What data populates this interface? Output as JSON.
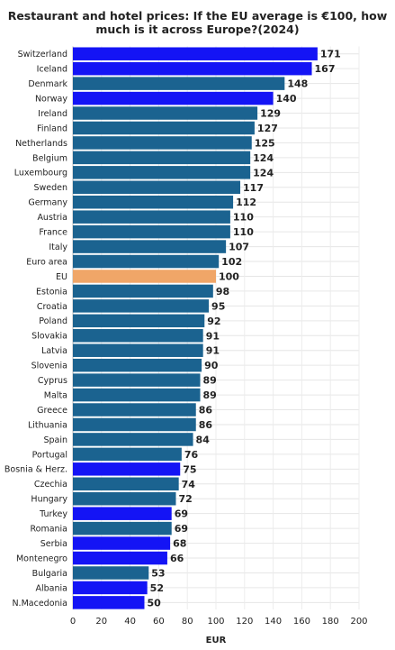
{
  "chart_data": {
    "type": "bar",
    "orientation": "horizontal",
    "title_line1": "Restaurant and hotel prices: If the EU average is €100, how",
    "title_line2": "much is it across Europe?(2024)",
    "xlabel": "EUR",
    "ylabel": "",
    "xlim": [
      0,
      200
    ],
    "xticks": [
      "0",
      "20",
      "40",
      "60",
      "80",
      "100",
      "120",
      "140",
      "160",
      "180",
      "200"
    ],
    "grid": true,
    "colors": {
      "eu_member": "#1b6390",
      "non_eu": "#1414f5",
      "eu_average": "#f0a668"
    },
    "bars": [
      {
        "label": "Switzerland",
        "value": 171,
        "group": "non_eu"
      },
      {
        "label": "Iceland",
        "value": 167,
        "group": "non_eu"
      },
      {
        "label": "Denmark",
        "value": 148,
        "group": "eu_member"
      },
      {
        "label": "Norway",
        "value": 140,
        "group": "non_eu"
      },
      {
        "label": "Ireland",
        "value": 129,
        "group": "eu_member"
      },
      {
        "label": "Finland",
        "value": 127,
        "group": "eu_member"
      },
      {
        "label": "Netherlands",
        "value": 125,
        "group": "eu_member"
      },
      {
        "label": "Belgium",
        "value": 124,
        "group": "eu_member"
      },
      {
        "label": "Luxembourg",
        "value": 124,
        "group": "eu_member"
      },
      {
        "label": "Sweden",
        "value": 117,
        "group": "eu_member"
      },
      {
        "label": "Germany",
        "value": 112,
        "group": "eu_member"
      },
      {
        "label": "Austria",
        "value": 110,
        "group": "eu_member"
      },
      {
        "label": "France",
        "value": 110,
        "group": "eu_member"
      },
      {
        "label": "Italy",
        "value": 107,
        "group": "eu_member"
      },
      {
        "label": "Euro area",
        "value": 102,
        "group": "eu_member"
      },
      {
        "label": "EU",
        "value": 100,
        "group": "eu_average"
      },
      {
        "label": "Estonia",
        "value": 98,
        "group": "eu_member"
      },
      {
        "label": "Croatia",
        "value": 95,
        "group": "eu_member"
      },
      {
        "label": "Poland",
        "value": 92,
        "group": "eu_member"
      },
      {
        "label": "Slovakia",
        "value": 91,
        "group": "eu_member"
      },
      {
        "label": "Latvia",
        "value": 91,
        "group": "eu_member"
      },
      {
        "label": "Slovenia",
        "value": 90,
        "group": "eu_member"
      },
      {
        "label": "Cyprus",
        "value": 89,
        "group": "eu_member"
      },
      {
        "label": "Malta",
        "value": 89,
        "group": "eu_member"
      },
      {
        "label": "Greece",
        "value": 86,
        "group": "eu_member"
      },
      {
        "label": "Lithuania",
        "value": 86,
        "group": "eu_member"
      },
      {
        "label": "Spain",
        "value": 84,
        "group": "eu_member"
      },
      {
        "label": "Portugal",
        "value": 76,
        "group": "eu_member"
      },
      {
        "label": "Bosnia & Herz.",
        "value": 75,
        "group": "non_eu"
      },
      {
        "label": "Czechia",
        "value": 74,
        "group": "eu_member"
      },
      {
        "label": "Hungary",
        "value": 72,
        "group": "eu_member"
      },
      {
        "label": "Turkey",
        "value": 69,
        "group": "non_eu"
      },
      {
        "label": "Romania",
        "value": 69,
        "group": "eu_member"
      },
      {
        "label": "Serbia",
        "value": 68,
        "group": "non_eu"
      },
      {
        "label": "Montenegro",
        "value": 66,
        "group": "non_eu"
      },
      {
        "label": "Bulgaria",
        "value": 53,
        "group": "eu_member"
      },
      {
        "label": "Albania",
        "value": 52,
        "group": "non_eu"
      },
      {
        "label": "N.Macedonia",
        "value": 50,
        "group": "non_eu"
      }
    ]
  }
}
